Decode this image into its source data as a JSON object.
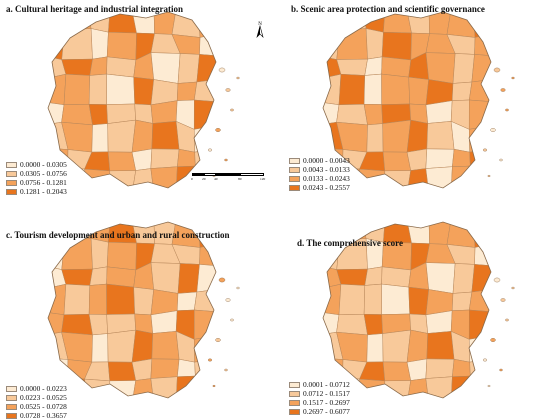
{
  "panels": [
    {
      "id": "a",
      "title": "a. Cultural heritage and industrial integration",
      "legend": [
        "0.0000 - 0.0305",
        "0.0305 - 0.0756",
        "0.0756 - 0.1281",
        "0.1281 - 0.2043"
      ]
    },
    {
      "id": "b",
      "title": "b. Scenic area protection and scientific governance",
      "legend": [
        "0.0000 - 0.0043",
        "0.0043 - 0.0133",
        "0.0133 - 0.0243",
        "0.0243 - 0.2557"
      ]
    },
    {
      "id": "c",
      "title": "c. Tourism development and urban and rural construction",
      "legend": [
        "0.0000 - 0.0223",
        "0.0223 - 0.0525",
        "0.0525 - 0.0728",
        "0.0728 - 0.3657"
      ]
    },
    {
      "id": "d",
      "title": "d. The comprehensive score",
      "legend": [
        "0.0001 - 0.0712",
        "0.0712 - 0.1517",
        "0.1517 - 0.2697",
        "0.2697 - 0.6077"
      ]
    }
  ],
  "scale_labels": [
    "0",
    "20",
    "40",
    "80",
    "120"
  ],
  "north_label": "N",
  "colors": [
    "#fdebd3",
    "#f8c99a",
    "#f4a25b",
    "#e8751e"
  ],
  "region_classes": {
    "a": [
      1,
      2,
      1,
      3,
      0,
      2,
      1,
      2,
      3,
      1,
      0,
      2,
      3,
      1,
      2,
      0,
      1,
      3,
      2,
      1,
      2,
      0,
      1,
      3,
      2,
      2,
      1,
      0,
      3,
      1,
      2,
      1,
      0,
      2,
      3,
      1,
      1,
      2,
      0,
      3,
      1,
      2,
      0,
      1,
      2,
      3,
      1,
      0,
      2,
      1,
      3,
      2,
      0,
      1,
      2,
      1,
      3,
      0,
      2,
      1,
      1,
      2,
      3,
      0
    ],
    "b": [
      2,
      1,
      3,
      2,
      1,
      2,
      2,
      3,
      1,
      2,
      1,
      3,
      2,
      2,
      1,
      2,
      3,
      1,
      0,
      2,
      3,
      2,
      1,
      2,
      1,
      3,
      0,
      2,
      2,
      3,
      1,
      2,
      0,
      1,
      2,
      3,
      2,
      0,
      1,
      2,
      3,
      2,
      1,
      2,
      3,
      1,
      0,
      2,
      2,
      1,
      3,
      2,
      1,
      0,
      2,
      3,
      1,
      2,
      2,
      1,
      3,
      0,
      2,
      2
    ],
    "c": [
      1,
      2,
      2,
      3,
      1,
      1,
      2,
      3,
      0,
      2,
      1,
      2,
      3,
      1,
      1,
      2,
      0,
      3,
      1,
      2,
      2,
      1,
      3,
      0,
      2,
      1,
      2,
      3,
      1,
      2,
      0,
      1,
      2,
      3,
      1,
      1,
      2,
      0,
      3,
      2,
      1,
      2,
      0,
      1,
      3,
      2,
      1,
      2,
      0,
      2,
      1,
      3,
      1,
      2,
      0,
      1,
      2,
      3,
      1,
      0,
      2,
      1,
      3,
      2
    ],
    "d": [
      1,
      2,
      1,
      3,
      0,
      2,
      2,
      3,
      1,
      1,
      0,
      2,
      3,
      2,
      1,
      0,
      2,
      3,
      1,
      1,
      2,
      0,
      1,
      3,
      2,
      1,
      1,
      0,
      3,
      2,
      1,
      2,
      0,
      1,
      3,
      2,
      1,
      0,
      2,
      3,
      1,
      2,
      0,
      1,
      2,
      3,
      1,
      0,
      2,
      1,
      3,
      2,
      0,
      1,
      2,
      1,
      3,
      0,
      2,
      1,
      2,
      1,
      3,
      0
    ]
  }
}
